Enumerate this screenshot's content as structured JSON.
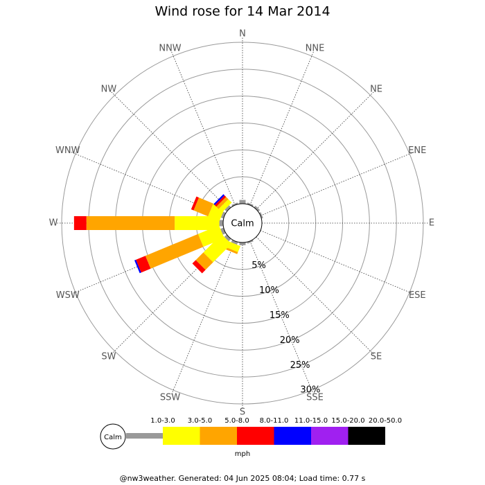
{
  "chart_data": {
    "type": "wind_rose",
    "title": "Wind rose for 14 Mar 2014",
    "categories": [
      "N",
      "NNE",
      "NE",
      "ENE",
      "E",
      "ESE",
      "SE",
      "SSE",
      "S",
      "SSW",
      "SW",
      "WSW",
      "W",
      "WNW",
      "NW",
      "NNW"
    ],
    "calm_label": "Calm",
    "rlim": [
      0,
      30
    ],
    "rticks": [
      {
        "value": 5,
        "label": "5%"
      },
      {
        "value": 10,
        "label": "10%"
      },
      {
        "value": 15,
        "label": "15%"
      },
      {
        "value": 20,
        "label": "20%"
      },
      {
        "value": 25,
        "label": "25%"
      },
      {
        "value": 30,
        "label": "30%"
      }
    ],
    "legend_unit": "mph",
    "series": [
      {
        "name": "1.0-3.0",
        "color": "#999999",
        "values": [
          0.7,
          0.3,
          0.4,
          0.3,
          0,
          0,
          0,
          0.3,
          0.5,
          0.5,
          0.6,
          0.6,
          0.7,
          0.5,
          0.5,
          0.3
        ]
      },
      {
        "name": "3.0-5.0",
        "color": "#ffff00",
        "values": [
          0,
          0,
          0,
          0,
          0,
          0,
          0,
          0,
          0,
          1.2,
          4.8,
          4.2,
          8.3,
          2.3,
          0.9,
          0
        ]
      },
      {
        "name": "5.0-8.0",
        "color": "#ffa500",
        "values": [
          0,
          0,
          0,
          0,
          0,
          0,
          0,
          0,
          0,
          0.4,
          2.0,
          10.6,
          16.4,
          2.9,
          0.6,
          0
        ]
      },
      {
        "name": "8.0-11.0",
        "color": "#ff0000",
        "values": [
          0,
          0,
          0,
          0,
          0,
          0,
          0,
          0,
          0,
          0,
          0.9,
          1.9,
          2.3,
          0.5,
          0.4,
          0
        ]
      },
      {
        "name": "11.0-15.0",
        "color": "#0000ff",
        "values": [
          0,
          0,
          0,
          0,
          0,
          0,
          0,
          0,
          0,
          0,
          0,
          0.3,
          0,
          0,
          0.3,
          0
        ]
      },
      {
        "name": "15.0-20.0",
        "color": "#a020f0",
        "values": [
          0,
          0,
          0,
          0,
          0,
          0,
          0,
          0,
          0,
          0,
          0,
          0,
          0,
          0,
          0,
          0
        ]
      },
      {
        "name": "20.0-50.0",
        "color": "#000000",
        "values": [
          0,
          0,
          0,
          0,
          0,
          0,
          0,
          0,
          0,
          0,
          0,
          0,
          0,
          0,
          0,
          0
        ]
      }
    ],
    "footer": "@nw3weather. Generated: 04 Jun 2025 08:04; Load time: 0.77 s"
  }
}
